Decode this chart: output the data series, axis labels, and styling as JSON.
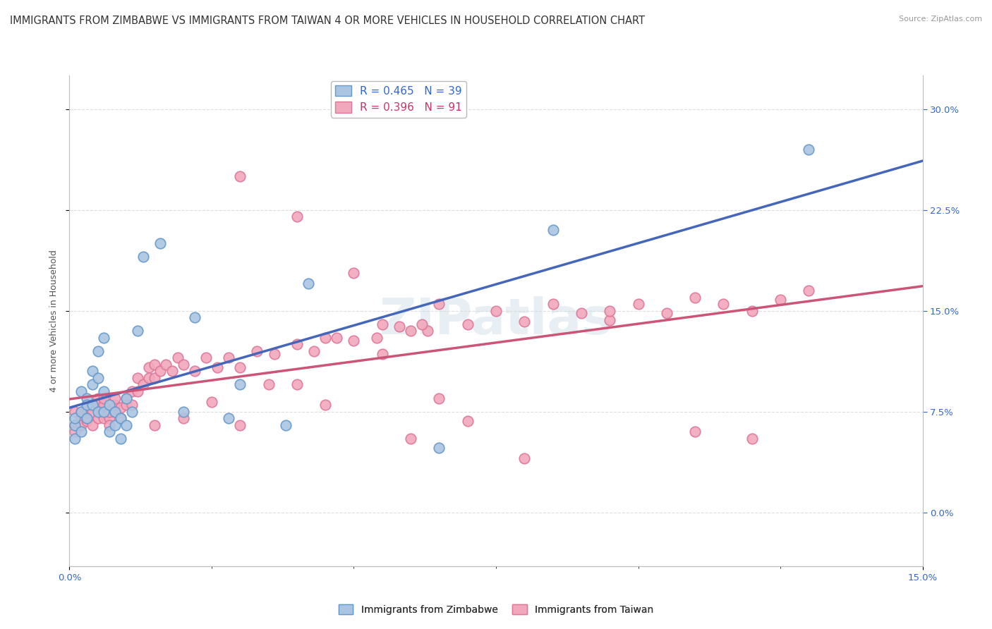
{
  "title": "IMMIGRANTS FROM ZIMBABWE VS IMMIGRANTS FROM TAIWAN 4 OR MORE VEHICLES IN HOUSEHOLD CORRELATION CHART",
  "source": "Source: ZipAtlas.com",
  "ylabel": "4 or more Vehicles in Household",
  "x_min": 0.0,
  "x_max": 0.15,
  "y_min": -0.04,
  "y_max": 0.325,
  "x_tick_positions": [
    0.0,
    0.15
  ],
  "x_tick_labels": [
    "0.0%",
    "15.0%"
  ],
  "y_ticks": [
    0.0,
    0.075,
    0.15,
    0.225,
    0.3
  ],
  "y_tick_labels": [
    "0.0%",
    "7.5%",
    "15.0%",
    "22.5%",
    "30.0%"
  ],
  "legend1_label": "R = 0.465   N = 39",
  "legend2_label": "R = 0.396   N = 91",
  "legend1_text_color": "#3366cc",
  "legend2_text_color": "#cc3366",
  "watermark": "ZIPatlas",
  "blue_color": "#aac5e2",
  "pink_color": "#f2a8bc",
  "blue_edge_color": "#6699cc",
  "pink_edge_color": "#dd7799",
  "blue_line_color": "#4466bb",
  "pink_line_color": "#cc5577",
  "background_color": "#ffffff",
  "grid_color": "#dddddd",
  "title_fontsize": 10.5,
  "source_fontsize": 8,
  "axis_label_fontsize": 9,
  "tick_fontsize": 9.5,
  "legend_fontsize": 11,
  "marker_size": 110,
  "bottom_legend_label1": "Immigrants from Zimbabwe",
  "bottom_legend_label2": "Immigrants from Taiwan",
  "zim_x": [
    0.001,
    0.001,
    0.001,
    0.002,
    0.002,
    0.002,
    0.003,
    0.003,
    0.003,
    0.004,
    0.004,
    0.004,
    0.005,
    0.005,
    0.005,
    0.006,
    0.006,
    0.006,
    0.007,
    0.007,
    0.008,
    0.008,
    0.009,
    0.009,
    0.01,
    0.01,
    0.011,
    0.012,
    0.013,
    0.016,
    0.02,
    0.022,
    0.028,
    0.03,
    0.038,
    0.042,
    0.065,
    0.085,
    0.13
  ],
  "zim_y": [
    0.065,
    0.07,
    0.055,
    0.09,
    0.075,
    0.06,
    0.085,
    0.07,
    0.08,
    0.105,
    0.095,
    0.08,
    0.12,
    0.1,
    0.075,
    0.13,
    0.09,
    0.075,
    0.06,
    0.08,
    0.065,
    0.075,
    0.07,
    0.055,
    0.085,
    0.065,
    0.075,
    0.135,
    0.19,
    0.2,
    0.075,
    0.145,
    0.07,
    0.095,
    0.065,
    0.17,
    0.048,
    0.21,
    0.27
  ],
  "tw_x": [
    0.001,
    0.001,
    0.001,
    0.002,
    0.002,
    0.002,
    0.003,
    0.003,
    0.003,
    0.004,
    0.004,
    0.005,
    0.005,
    0.005,
    0.006,
    0.006,
    0.006,
    0.007,
    0.007,
    0.007,
    0.008,
    0.008,
    0.008,
    0.009,
    0.009,
    0.01,
    0.01,
    0.011,
    0.011,
    0.012,
    0.012,
    0.013,
    0.014,
    0.014,
    0.015,
    0.015,
    0.016,
    0.017,
    0.018,
    0.019,
    0.02,
    0.022,
    0.024,
    0.026,
    0.028,
    0.03,
    0.033,
    0.036,
    0.04,
    0.043,
    0.047,
    0.05,
    0.054,
    0.058,
    0.063,
    0.04,
    0.055,
    0.06,
    0.062,
    0.07,
    0.075,
    0.08,
    0.085,
    0.09,
    0.095,
    0.1,
    0.105,
    0.11,
    0.115,
    0.12,
    0.125,
    0.13,
    0.03,
    0.04,
    0.05,
    0.03,
    0.06,
    0.07,
    0.08,
    0.095,
    0.11,
    0.12,
    0.045,
    0.065,
    0.015,
    0.02,
    0.025,
    0.035,
    0.045,
    0.055,
    0.065
  ],
  "tw_y": [
    0.065,
    0.06,
    0.075,
    0.07,
    0.075,
    0.065,
    0.068,
    0.078,
    0.07,
    0.075,
    0.065,
    0.085,
    0.07,
    0.08,
    0.07,
    0.08,
    0.085,
    0.07,
    0.075,
    0.065,
    0.075,
    0.08,
    0.085,
    0.07,
    0.078,
    0.085,
    0.08,
    0.09,
    0.08,
    0.09,
    0.1,
    0.095,
    0.1,
    0.108,
    0.1,
    0.11,
    0.105,
    0.11,
    0.105,
    0.115,
    0.11,
    0.105,
    0.115,
    0.108,
    0.115,
    0.108,
    0.12,
    0.118,
    0.125,
    0.12,
    0.13,
    0.128,
    0.13,
    0.138,
    0.135,
    0.095,
    0.14,
    0.135,
    0.14,
    0.14,
    0.15,
    0.142,
    0.155,
    0.148,
    0.143,
    0.155,
    0.148,
    0.16,
    0.155,
    0.15,
    0.158,
    0.165,
    0.25,
    0.22,
    0.178,
    0.065,
    0.055,
    0.068,
    0.04,
    0.15,
    0.06,
    0.055,
    0.13,
    0.155,
    0.065,
    0.07,
    0.082,
    0.095,
    0.08,
    0.118,
    0.085
  ]
}
